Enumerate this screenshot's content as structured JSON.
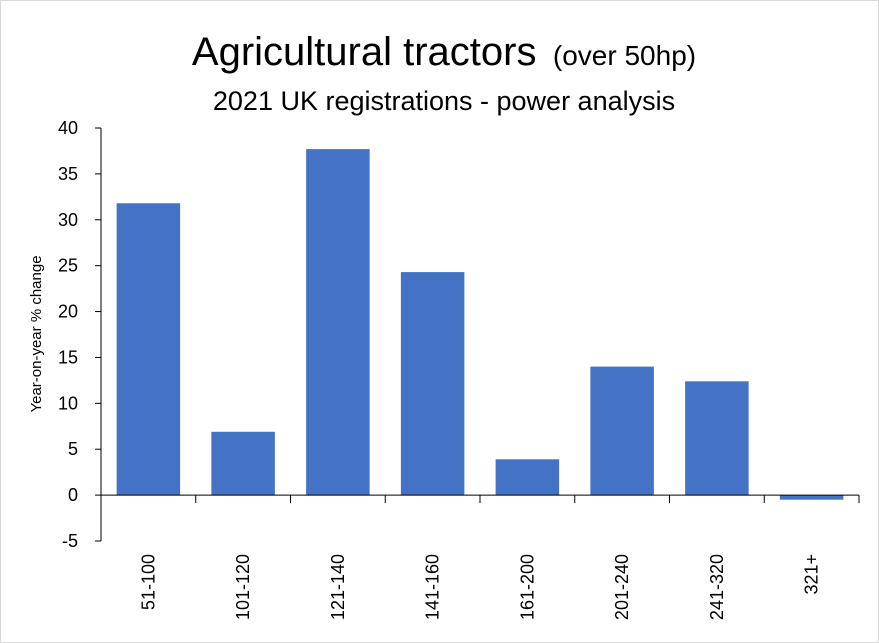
{
  "chart_data": {
    "type": "bar",
    "title": "Agricultural tractors",
    "title_suffix": "(over 50hp)",
    "subtitle": "2021 UK registrations - power analysis",
    "ylabel": "Year-on-year  % change",
    "xlabel": "",
    "categories": [
      "51-100",
      "101-120",
      "121-140",
      "141-160",
      "161-200",
      "201-240",
      "241-320",
      "321+"
    ],
    "values": [
      31.8,
      6.9,
      37.7,
      24.3,
      3.9,
      14.0,
      12.4,
      -0.5
    ],
    "ylim": [
      -5,
      40
    ],
    "yticks": [
      -5,
      0,
      5,
      10,
      15,
      20,
      25,
      30,
      35,
      40
    ],
    "grid": false,
    "bar_color": "#4472C4",
    "axis_color": "#000000"
  }
}
